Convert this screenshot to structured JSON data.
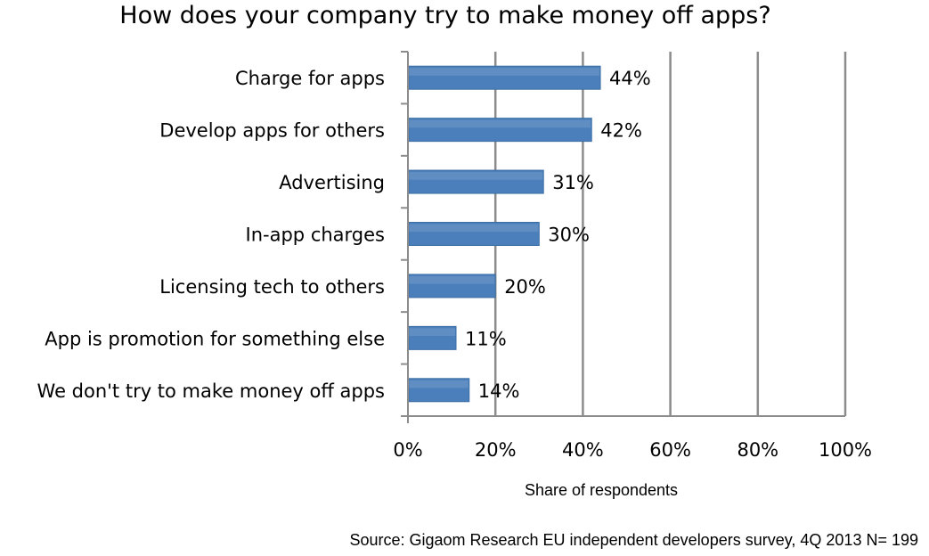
{
  "chart_data": {
    "type": "bar",
    "orientation": "horizontal",
    "title": "How does your company try to make money off apps?",
    "xlabel": "Share of respondents",
    "ylabel": "",
    "source": "Source: Gigaom Research EU independent developers survey, 4Q 2013 N= 199",
    "categories": [
      "Charge for apps",
      "Develop apps for others",
      "Advertising",
      "In-app charges",
      "Licensing tech to others",
      "App is promotion for something else",
      "We don't try to make money off apps"
    ],
    "values": [
      44,
      42,
      31,
      30,
      20,
      11,
      14
    ],
    "value_labels": [
      "44%",
      "42%",
      "31%",
      "30%",
      "20%",
      "11%",
      "14%"
    ],
    "xlim": [
      0,
      100
    ],
    "xticks": [
      0,
      20,
      40,
      60,
      80,
      100
    ],
    "xtick_labels": [
      "0%",
      "20%",
      "40%",
      "60%",
      "80%",
      "100%"
    ],
    "grid": true,
    "bar_color": "#4a7fbb",
    "grid_color": "#8c8c8c"
  }
}
